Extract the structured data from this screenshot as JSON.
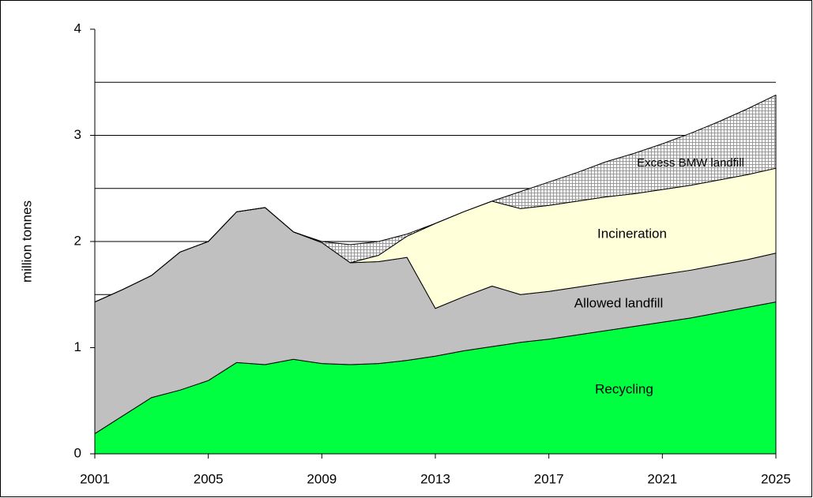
{
  "chart_data": {
    "type": "stacked_area",
    "y_label": "million tonnes",
    "x": [
      2001,
      2002,
      2003,
      2004,
      2005,
      2006,
      2007,
      2008,
      2009,
      2010,
      2011,
      2012,
      2013,
      2014,
      2015,
      2016,
      2017,
      2018,
      2019,
      2020,
      2021,
      2022,
      2023,
      2024,
      2025
    ],
    "xlim": [
      2001,
      2025
    ],
    "xticks": [
      2001,
      2005,
      2009,
      2013,
      2017,
      2021,
      2025
    ],
    "ylim": [
      0,
      4
    ],
    "yticks": [
      0,
      1,
      2,
      3,
      4
    ],
    "minor_yticks": [
      0.5,
      1.5,
      2.5,
      3.5
    ],
    "grid": true,
    "series": [
      {
        "name": "Recycling",
        "color": "#00ff40",
        "values": [
          0.19,
          0.36,
          0.53,
          0.6,
          0.69,
          0.86,
          0.84,
          0.89,
          0.85,
          0.84,
          0.85,
          0.88,
          0.92,
          0.97,
          1.01,
          1.05,
          1.08,
          1.12,
          1.16,
          1.2,
          1.24,
          1.28,
          1.33,
          1.38,
          1.43
        ]
      },
      {
        "name": "Allowed landfill",
        "color": "#c0c0c0",
        "values": [
          1.24,
          1.19,
          1.15,
          1.3,
          1.31,
          1.42,
          1.48,
          1.2,
          1.14,
          0.96,
          0.96,
          0.97,
          0.45,
          0.51,
          0.57,
          0.45,
          0.45,
          0.45,
          0.45,
          0.45,
          0.45,
          0.45,
          0.45,
          0.45,
          0.46
        ]
      },
      {
        "name": "Incineration",
        "color": "#ffffd9",
        "values": [
          0,
          0,
          0,
          0,
          0,
          0,
          0,
          0,
          0,
          0,
          0.06,
          0.2,
          0.8,
          0.8,
          0.8,
          0.81,
          0.81,
          0.81,
          0.81,
          0.8,
          0.8,
          0.8,
          0.8,
          0.8,
          0.8
        ]
      },
      {
        "name": "Excess BMW landfill",
        "color": "url(#hatch)",
        "values": [
          0,
          0,
          0,
          0,
          0,
          0,
          0,
          0,
          0.01,
          0.17,
          0.13,
          0.02,
          0,
          0,
          0,
          0.16,
          0.22,
          0.27,
          0.33,
          0.38,
          0.43,
          0.49,
          0.55,
          0.62,
          0.69
        ]
      }
    ]
  }
}
